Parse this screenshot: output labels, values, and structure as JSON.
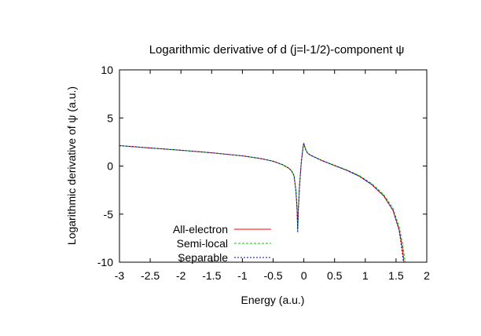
{
  "chart_data": {
    "type": "line",
    "title": "Logarithmic derivative of d (j=l-1/2)-component ψ",
    "xlabel": "Energy (a.u.)",
    "ylabel": "Logarithmic derivative of ψ (a.u.)",
    "xlim": [
      -3,
      2
    ],
    "ylim": [
      -10,
      10
    ],
    "xticks": [
      -3,
      -2.5,
      -2,
      -1.5,
      -1,
      -0.5,
      0,
      0.5,
      1,
      1.5,
      2
    ],
    "xtick_labels": [
      "-3",
      "-2.5",
      "-2",
      "-1.5",
      "-1",
      "-0.5",
      "0",
      "0.5",
      "1",
      "1.5",
      "2"
    ],
    "yticks": [
      -10,
      -5,
      0,
      5,
      10
    ],
    "ytick_labels": [
      "-10",
      "-5",
      "0",
      "5",
      "10"
    ],
    "grid": false,
    "legend_position": "bottom-left",
    "series": [
      {
        "name": "All-electron",
        "color": "#ff0000",
        "dash": "",
        "points": [
          [
            -3,
            2.12
          ],
          [
            -2.5,
            1.88
          ],
          [
            -2,
            1.64
          ],
          [
            -1.5,
            1.38
          ],
          [
            -1,
            1.06
          ],
          [
            -0.7,
            0.78
          ],
          [
            -0.5,
            0.5
          ],
          [
            -0.35,
            0.15
          ],
          [
            -0.25,
            -0.2
          ],
          [
            -0.2,
            -0.5
          ],
          [
            -0.16,
            -1.0
          ],
          [
            -0.13,
            -2.5
          ],
          [
            -0.11,
            -4.5
          ],
          [
            -0.1,
            -6.6
          ],
          [
            -0.09,
            -4.5
          ],
          [
            -0.07,
            -2.0
          ],
          [
            -0.04,
            0.5
          ],
          [
            -0.01,
            2.1
          ],
          [
            0.0,
            2.3
          ],
          [
            0.03,
            1.7
          ],
          [
            0.06,
            1.35
          ],
          [
            0.1,
            1.15
          ],
          [
            0.3,
            0.55
          ],
          [
            0.5,
            0.05
          ],
          [
            0.7,
            -0.45
          ],
          [
            0.9,
            -1.05
          ],
          [
            1.1,
            -1.9
          ],
          [
            1.3,
            -3.1
          ],
          [
            1.45,
            -4.6
          ],
          [
            1.55,
            -6.6
          ],
          [
            1.6,
            -8.4
          ],
          [
            1.63,
            -10
          ]
        ]
      },
      {
        "name": "Semi-local",
        "color": "#00cc00",
        "dash": "3,2",
        "points": [
          [
            -3,
            2.12
          ],
          [
            -2.5,
            1.88
          ],
          [
            -2,
            1.64
          ],
          [
            -1.5,
            1.38
          ],
          [
            -1,
            1.06
          ],
          [
            -0.7,
            0.78
          ],
          [
            -0.5,
            0.5
          ],
          [
            -0.35,
            0.15
          ],
          [
            -0.25,
            -0.2
          ],
          [
            -0.2,
            -0.5
          ],
          [
            -0.16,
            -1.0
          ],
          [
            -0.13,
            -2.6
          ],
          [
            -0.11,
            -4.8
          ],
          [
            -0.1,
            -7.0
          ],
          [
            -0.09,
            -4.8
          ],
          [
            -0.07,
            -2.1
          ],
          [
            -0.04,
            0.5
          ],
          [
            -0.01,
            2.2
          ],
          [
            0.0,
            2.4
          ],
          [
            0.03,
            1.75
          ],
          [
            0.06,
            1.38
          ],
          [
            0.1,
            1.17
          ],
          [
            0.3,
            0.57
          ],
          [
            0.5,
            0.08
          ],
          [
            0.7,
            -0.4
          ],
          [
            0.9,
            -0.98
          ],
          [
            1.1,
            -1.8
          ],
          [
            1.3,
            -2.95
          ],
          [
            1.45,
            -4.4
          ],
          [
            1.55,
            -6.3
          ],
          [
            1.61,
            -8.2
          ],
          [
            1.65,
            -10
          ]
        ]
      },
      {
        "name": "Separable",
        "color": "#0000cc",
        "dash": "2,2",
        "points": [
          [
            -3,
            2.12
          ],
          [
            -2.5,
            1.88
          ],
          [
            -2,
            1.64
          ],
          [
            -1.5,
            1.38
          ],
          [
            -1,
            1.06
          ],
          [
            -0.7,
            0.78
          ],
          [
            -0.5,
            0.5
          ],
          [
            -0.35,
            0.15
          ],
          [
            -0.25,
            -0.2
          ],
          [
            -0.2,
            -0.5
          ],
          [
            -0.16,
            -1.0
          ],
          [
            -0.13,
            -2.5
          ],
          [
            -0.11,
            -4.5
          ],
          [
            -0.1,
            -6.8
          ],
          [
            -0.09,
            -4.5
          ],
          [
            -0.07,
            -2.0
          ],
          [
            -0.04,
            0.5
          ],
          [
            -0.01,
            2.1
          ],
          [
            0.0,
            2.3
          ],
          [
            0.03,
            1.7
          ],
          [
            0.06,
            1.35
          ],
          [
            0.1,
            1.15
          ],
          [
            0.3,
            0.55
          ],
          [
            0.5,
            0.05
          ],
          [
            0.7,
            -0.45
          ],
          [
            0.9,
            -1.05
          ],
          [
            1.1,
            -1.9
          ],
          [
            1.3,
            -3.1
          ],
          [
            1.45,
            -4.6
          ],
          [
            1.55,
            -6.7
          ],
          [
            1.59,
            -8.5
          ],
          [
            1.62,
            -10
          ]
        ]
      }
    ]
  }
}
